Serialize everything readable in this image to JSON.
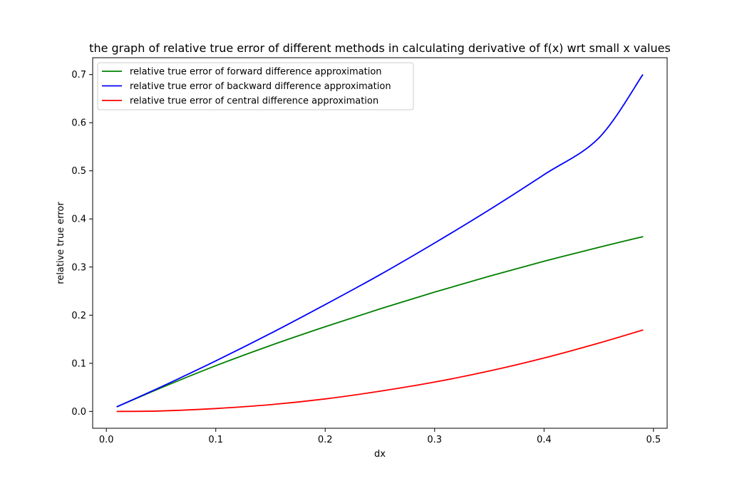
{
  "chart_data": {
    "type": "line",
    "title": "the graph of relative true error of different methods in calculating derivative of f(x) wrt small x values",
    "xlabel": "dx",
    "ylabel": "relative true error",
    "xlim": [
      -0.0125,
      0.5125
    ],
    "ylim": [
      -0.035,
      0.735
    ],
    "xticks": [
      0.0,
      0.1,
      0.2,
      0.3,
      0.4,
      0.5
    ],
    "xtick_labels": [
      "0.0",
      "0.1",
      "0.2",
      "0.3",
      "0.4",
      "0.5"
    ],
    "yticks": [
      0.0,
      0.1,
      0.2,
      0.3,
      0.4,
      0.5,
      0.6,
      0.7
    ],
    "ytick_labels": [
      "0.0",
      "0.1",
      "0.2",
      "0.3",
      "0.4",
      "0.5",
      "0.6",
      "0.7"
    ],
    "grid": false,
    "legend_position": "top-left",
    "series": [
      {
        "name": "relative true error of forward difference approximation",
        "color": "#008000",
        "x": [
          0.01,
          0.05,
          0.1,
          0.15,
          0.2,
          0.25,
          0.3,
          0.35,
          0.4,
          0.45,
          0.49
        ],
        "y": [
          0.01,
          0.049,
          0.095,
          0.137,
          0.176,
          0.213,
          0.248,
          0.281,
          0.312,
          0.341,
          0.363
        ]
      },
      {
        "name": "relative true error of backward difference approximation",
        "color": "#0000ff",
        "x": [
          0.01,
          0.05,
          0.1,
          0.15,
          0.2,
          0.25,
          0.3,
          0.35,
          0.4,
          0.45,
          0.49
        ],
        "y": [
          0.01,
          0.051,
          0.105,
          0.162,
          0.222,
          0.284,
          0.35,
          0.419,
          0.492,
          0.568,
          0.699
        ]
      },
      {
        "name": "relative true error of central difference approximation",
        "color": "#ff0000",
        "x": [
          0.01,
          0.05,
          0.1,
          0.15,
          0.2,
          0.25,
          0.3,
          0.35,
          0.4,
          0.45,
          0.49
        ],
        "y": [
          0.0,
          0.001,
          0.006,
          0.014,
          0.026,
          0.042,
          0.061,
          0.084,
          0.111,
          0.142,
          0.169
        ]
      }
    ]
  }
}
